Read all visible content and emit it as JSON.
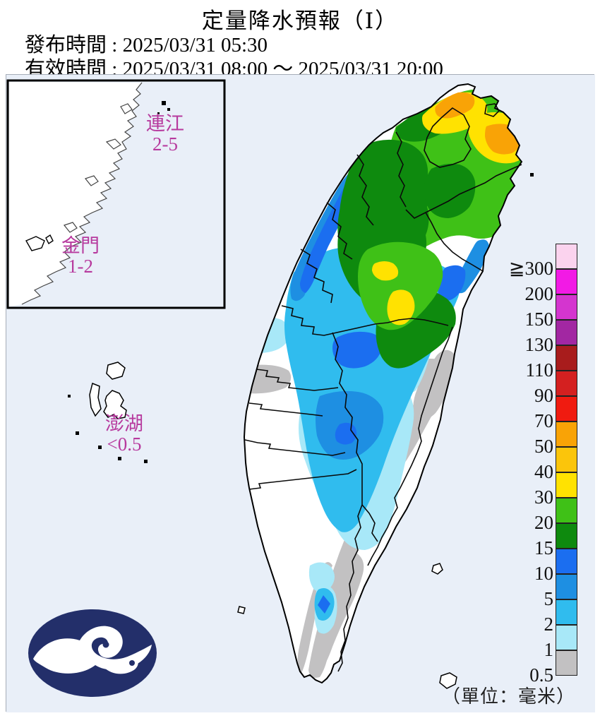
{
  "header": {
    "title": "定量降水預報（Ⅰ）",
    "issued_label": "發布時間",
    "separator": " : ",
    "issued_value": "2025/03/31 05:30",
    "valid_label": "有效時間",
    "valid_value": "2025/03/31 08:00 ～ 2025/03/31 20:00"
  },
  "map": {
    "label_color": "#b73a9e",
    "offshore_labels": [
      {
        "name": "連江",
        "value": "2-5"
      },
      {
        "name": "金門",
        "value": "1-2"
      },
      {
        "name": "澎湖",
        "value": "<0.5"
      }
    ],
    "unit_note": "（單位：毫米）"
  },
  "legend": {
    "gte_prefix": "≧",
    "ticks": [
      "300",
      "200",
      "150",
      "130",
      "110",
      "90",
      "70",
      "50",
      "40",
      "30",
      "20",
      "15",
      "10",
      "5",
      "2",
      "1",
      "0.5"
    ],
    "colors": [
      "#fbd3ee",
      "#f21ae5",
      "#d435cf",
      "#a227a2",
      "#a81c1c",
      "#d42020",
      "#f01b10",
      "#f9a306",
      "#fbc50b",
      "#ffe201",
      "#3fc117",
      "#0e8a0e",
      "#1b6ef0",
      "#1e8fe2",
      "#30bcee",
      "#a8e8f8",
      "#c2c1c2"
    ]
  },
  "colors": {
    "sea": "#e9eff8",
    "island": "#ffffff",
    "gray": "#c2c1c2",
    "palecyan": "#a8e8f8",
    "sky": "#30bcee",
    "medium": "#1e8fe2",
    "royal": "#1b6ef0",
    "darkgreen": "#0e8a0e",
    "lightgreen": "#3fc117",
    "yellow": "#ffe201",
    "orange": "#f9a306",
    "logo_navy": "#232f6a"
  }
}
